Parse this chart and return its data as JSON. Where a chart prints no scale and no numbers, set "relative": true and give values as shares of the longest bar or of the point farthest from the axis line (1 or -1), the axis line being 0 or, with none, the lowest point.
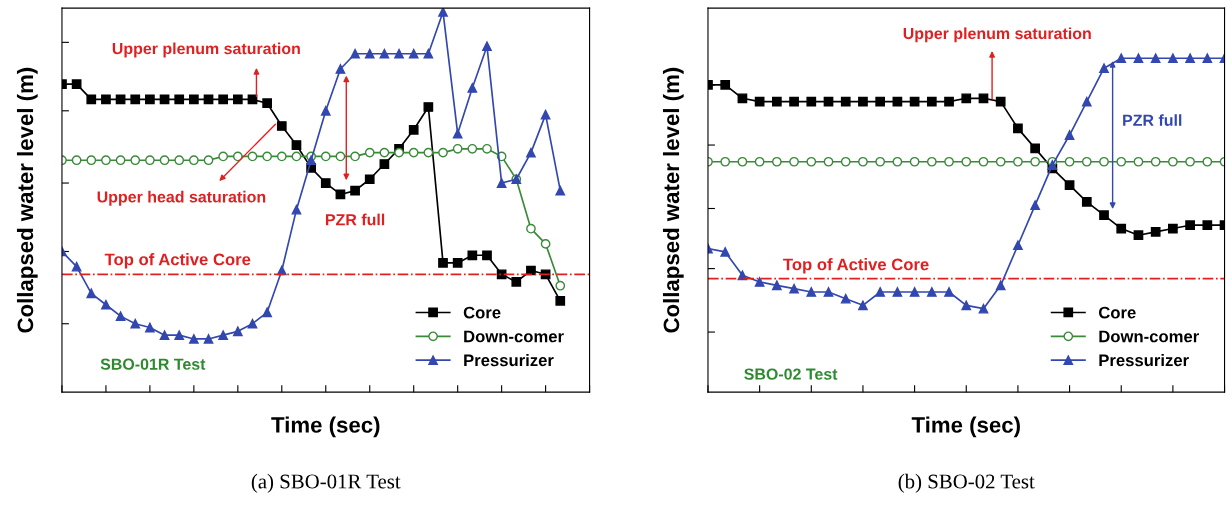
{
  "chart_data": [
    {
      "type": "line",
      "relative": true,
      "xlabel": "Time (sec)",
      "ylabel": "Collapsed water level (m)",
      "legend": "lower right",
      "grid": false,
      "tick_labels": false,
      "categories": [
        null,
        null,
        null,
        null,
        null,
        null,
        null,
        null,
        null,
        null,
        null,
        null,
        null,
        null,
        null,
        null,
        null,
        null,
        null,
        null,
        null,
        null,
        null,
        null,
        null,
        null,
        null,
        null,
        null,
        null,
        null,
        null,
        null,
        null,
        null,
        null,
        null
      ],
      "series": [
        {
          "name": "Core",
          "color": "#000000",
          "marker": "square",
          "values": [
            0.81,
            0.81,
            0.77,
            0.77,
            0.77,
            0.77,
            0.77,
            0.77,
            0.77,
            0.77,
            0.77,
            0.77,
            0.77,
            0.77,
            0.76,
            0.7,
            0.65,
            0.59,
            0.55,
            0.52,
            0.53,
            0.56,
            0.6,
            0.64,
            0.69,
            0.75,
            0.34,
            0.34,
            0.36,
            0.36,
            0.31,
            0.29,
            0.32,
            0.31,
            0.24,
            null,
            null
          ]
        },
        {
          "name": "Down-comer",
          "color": "#3a8a3a",
          "marker": "circle",
          "values": [
            0.61,
            0.61,
            0.61,
            0.61,
            0.61,
            0.61,
            0.61,
            0.61,
            0.61,
            0.61,
            0.61,
            0.62,
            0.62,
            0.62,
            0.62,
            0.62,
            0.62,
            0.62,
            0.62,
            0.62,
            0.62,
            0.63,
            0.63,
            0.63,
            0.63,
            0.63,
            0.63,
            0.64,
            0.64,
            0.64,
            0.62,
            0.56,
            0.43,
            0.39,
            0.28,
            null,
            null
          ]
        },
        {
          "name": "Pressurizer",
          "color": "#3347b0",
          "marker": "triangle",
          "values": [
            0.37,
            0.33,
            0.26,
            0.23,
            0.2,
            0.18,
            0.17,
            0.15,
            0.15,
            0.14,
            0.14,
            0.15,
            0.16,
            0.18,
            0.21,
            0.32,
            0.48,
            0.61,
            0.74,
            0.85,
            0.89,
            0.89,
            0.89,
            0.89,
            0.89,
            0.89,
            1.0,
            0.68,
            0.8,
            0.91,
            0.55,
            0.56,
            0.63,
            0.73,
            0.53,
            null,
            null
          ]
        }
      ],
      "ref_lines": [
        {
          "axis": "y",
          "value": 0.31,
          "label": "Top of Active Core",
          "color": "#e02020",
          "line_style": "dashdot"
        }
      ],
      "annotations": [
        "Upper plenum saturation",
        "Upper head saturation",
        "PZR full",
        "SBO-01R Test",
        "(a) SBO-01R Test"
      ]
    },
    {
      "type": "line",
      "relative": true,
      "xlabel": "Time (sec)",
      "ylabel": "Collapsed water level (m)",
      "legend": "lower right",
      "grid": false,
      "tick_labels": false,
      "categories": [
        null,
        null,
        null,
        null,
        null,
        null,
        null,
        null,
        null,
        null,
        null,
        null,
        null,
        null,
        null,
        null,
        null,
        null,
        null,
        null,
        null,
        null,
        null,
        null,
        null,
        null,
        null,
        null,
        null,
        null,
        null
      ],
      "series": [
        {
          "name": "Core",
          "color": "#000000",
          "marker": "square",
          "values": [
            0.92,
            0.92,
            0.88,
            0.87,
            0.87,
            0.87,
            0.87,
            0.87,
            0.87,
            0.87,
            0.87,
            0.87,
            0.87,
            0.87,
            0.87,
            0.88,
            0.88,
            0.87,
            0.79,
            0.73,
            0.67,
            0.62,
            0.57,
            0.53,
            0.49,
            0.47,
            0.48,
            0.49,
            0.5,
            0.5,
            0.5
          ]
        },
        {
          "name": "Down-comer",
          "color": "#3a8a3a",
          "marker": "circle",
          "values": [
            0.69,
            0.69,
            0.69,
            0.69,
            0.69,
            0.69,
            0.69,
            0.69,
            0.69,
            0.69,
            0.69,
            0.69,
            0.69,
            0.69,
            0.69,
            0.69,
            0.69,
            0.69,
            0.69,
            0.69,
            0.69,
            0.69,
            0.69,
            0.69,
            0.69,
            0.69,
            0.69,
            0.69,
            0.69,
            0.69,
            0.69
          ]
        },
        {
          "name": "Pressurizer",
          "color": "#3347b0",
          "marker": "triangle",
          "values": [
            0.43,
            0.42,
            0.35,
            0.33,
            0.32,
            0.31,
            0.3,
            0.3,
            0.28,
            0.26,
            0.3,
            0.3,
            0.3,
            0.3,
            0.3,
            0.26,
            0.25,
            0.32,
            0.44,
            0.56,
            0.68,
            0.77,
            0.87,
            0.97,
            1.0,
            1.0,
            1.0,
            1.0,
            1.0,
            1.0,
            1.0
          ]
        }
      ],
      "ref_lines": [
        {
          "axis": "y",
          "value": 0.34,
          "label": "Top of Active Core",
          "color": "#e02020",
          "line_style": "dashdot"
        }
      ],
      "annotations": [
        "Upper plenum saturation",
        "PZR full",
        "SBO-02 Test",
        "(b) SBO-02 Test"
      ]
    }
  ]
}
